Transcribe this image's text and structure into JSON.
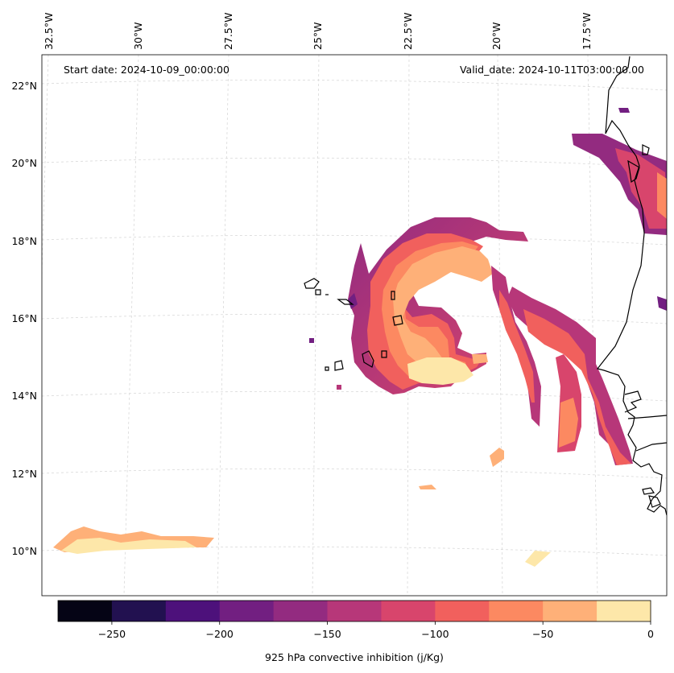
{
  "annotations": {
    "start_date": "Start date: 2024-10-09_00:00:00",
    "valid_date": "Valid_date: 2024-10-11T03:00:00.00"
  },
  "longitude_labels": [
    "32.5°W",
    "30°W",
    "27.5°W",
    "25°W",
    "22.5°W",
    "20°W",
    "17.5°W"
  ],
  "latitude_labels": [
    "22°N",
    "20°N",
    "18°N",
    "16°N",
    "14°N",
    "12°N",
    "10°N"
  ],
  "colorbar": {
    "label": "925 hPa convective inhibition (j/Kg)",
    "tick_labels": [
      "−250",
      "−200",
      "−150",
      "−100",
      "−50",
      "0"
    ],
    "bounds": [
      -275,
      -250,
      -225,
      -200,
      -175,
      -150,
      -125,
      -100,
      -75,
      -50,
      -25,
      0
    ],
    "colors": [
      "#050415",
      "#221150",
      "#4d117b",
      "#721f81",
      "#932b80",
      "#b73779",
      "#d8456c",
      "#f1605d",
      "#fc8961",
      "#feb078",
      "#fde7a9"
    ]
  },
  "chart_data": {
    "type": "heatmap",
    "title": "925 hPa convective inhibition",
    "variable": "925 hPa convective inhibition",
    "units": "j/Kg",
    "start_date": "2024-10-09_00:00:00",
    "valid_date": "2024-10-11T03:00:00.00",
    "lon_range": [
      -33,
      -16.5
    ],
    "lat_range": [
      9,
      22.5
    ],
    "color_range": [
      -275,
      0
    ],
    "features": [
      {
        "name": "hurricane-spiral-band",
        "min_value": -200,
        "max_value": 0,
        "center_lon": -23.5,
        "center_lat": 15.8
      },
      {
        "name": "outer-rain-bands",
        "min_value": -200,
        "max_value": -50
      },
      {
        "name": "saharan-coast-band",
        "min_value": -200,
        "max_value": -50
      },
      {
        "name": "southwest-low-cin-strip",
        "min_value": -50,
        "max_value": 0,
        "lat": 10.1
      }
    ]
  }
}
